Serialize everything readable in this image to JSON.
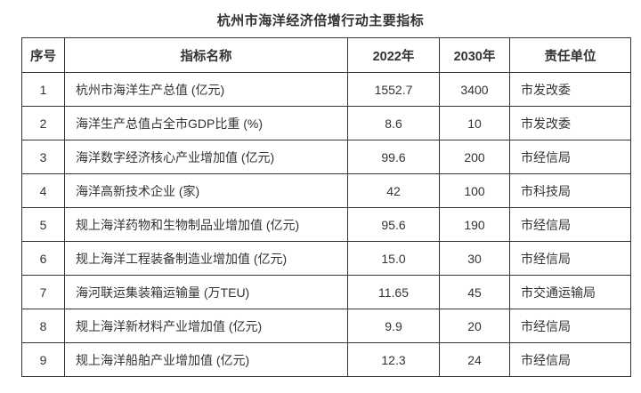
{
  "title": "杭州市海洋经济倍增行动主要指标",
  "colors": {
    "background": "#ffffff",
    "text": "#333333",
    "border": "#333333"
  },
  "table": {
    "columns": [
      "序号",
      "指标名称",
      "2022年",
      "2030年",
      "责任单位"
    ],
    "rows": [
      {
        "no": "1",
        "name": "杭州市海洋生产总值 (亿元)",
        "y2022": "1552.7",
        "y2030": "3400",
        "unit": "市发改委"
      },
      {
        "no": "2",
        "name": "海洋生产总值占全市GDP比重 (%)",
        "y2022": "8.6",
        "y2030": "10",
        "unit": "市发改委"
      },
      {
        "no": "3",
        "name": "海洋数字经济核心产业增加值 (亿元)",
        "y2022": "99.6",
        "y2030": "200",
        "unit": "市经信局"
      },
      {
        "no": "4",
        "name": "海洋高新技术企业 (家)",
        "y2022": "42",
        "y2030": "100",
        "unit": "市科技局"
      },
      {
        "no": "5",
        "name": "规上海洋药物和生物制品业增加值 (亿元)",
        "y2022": "95.6",
        "y2030": "190",
        "unit": "市经信局"
      },
      {
        "no": "6",
        "name": "规上海洋工程装备制造业增加值 (亿元)",
        "y2022": "15.0",
        "y2030": "30",
        "unit": "市经信局"
      },
      {
        "no": "7",
        "name": "海河联运集装箱运输量 (万TEU)",
        "y2022": "11.65",
        "y2030": "45",
        "unit": "市交通运输局"
      },
      {
        "no": "8",
        "name": "规上海洋新材料产业增加值 (亿元)",
        "y2022": "9.9",
        "y2030": "20",
        "unit": "市经信局"
      },
      {
        "no": "9",
        "name": "规上海洋船舶产业增加值 (亿元)",
        "y2022": "12.3",
        "y2030": "24",
        "unit": "市经信局"
      }
    ]
  }
}
